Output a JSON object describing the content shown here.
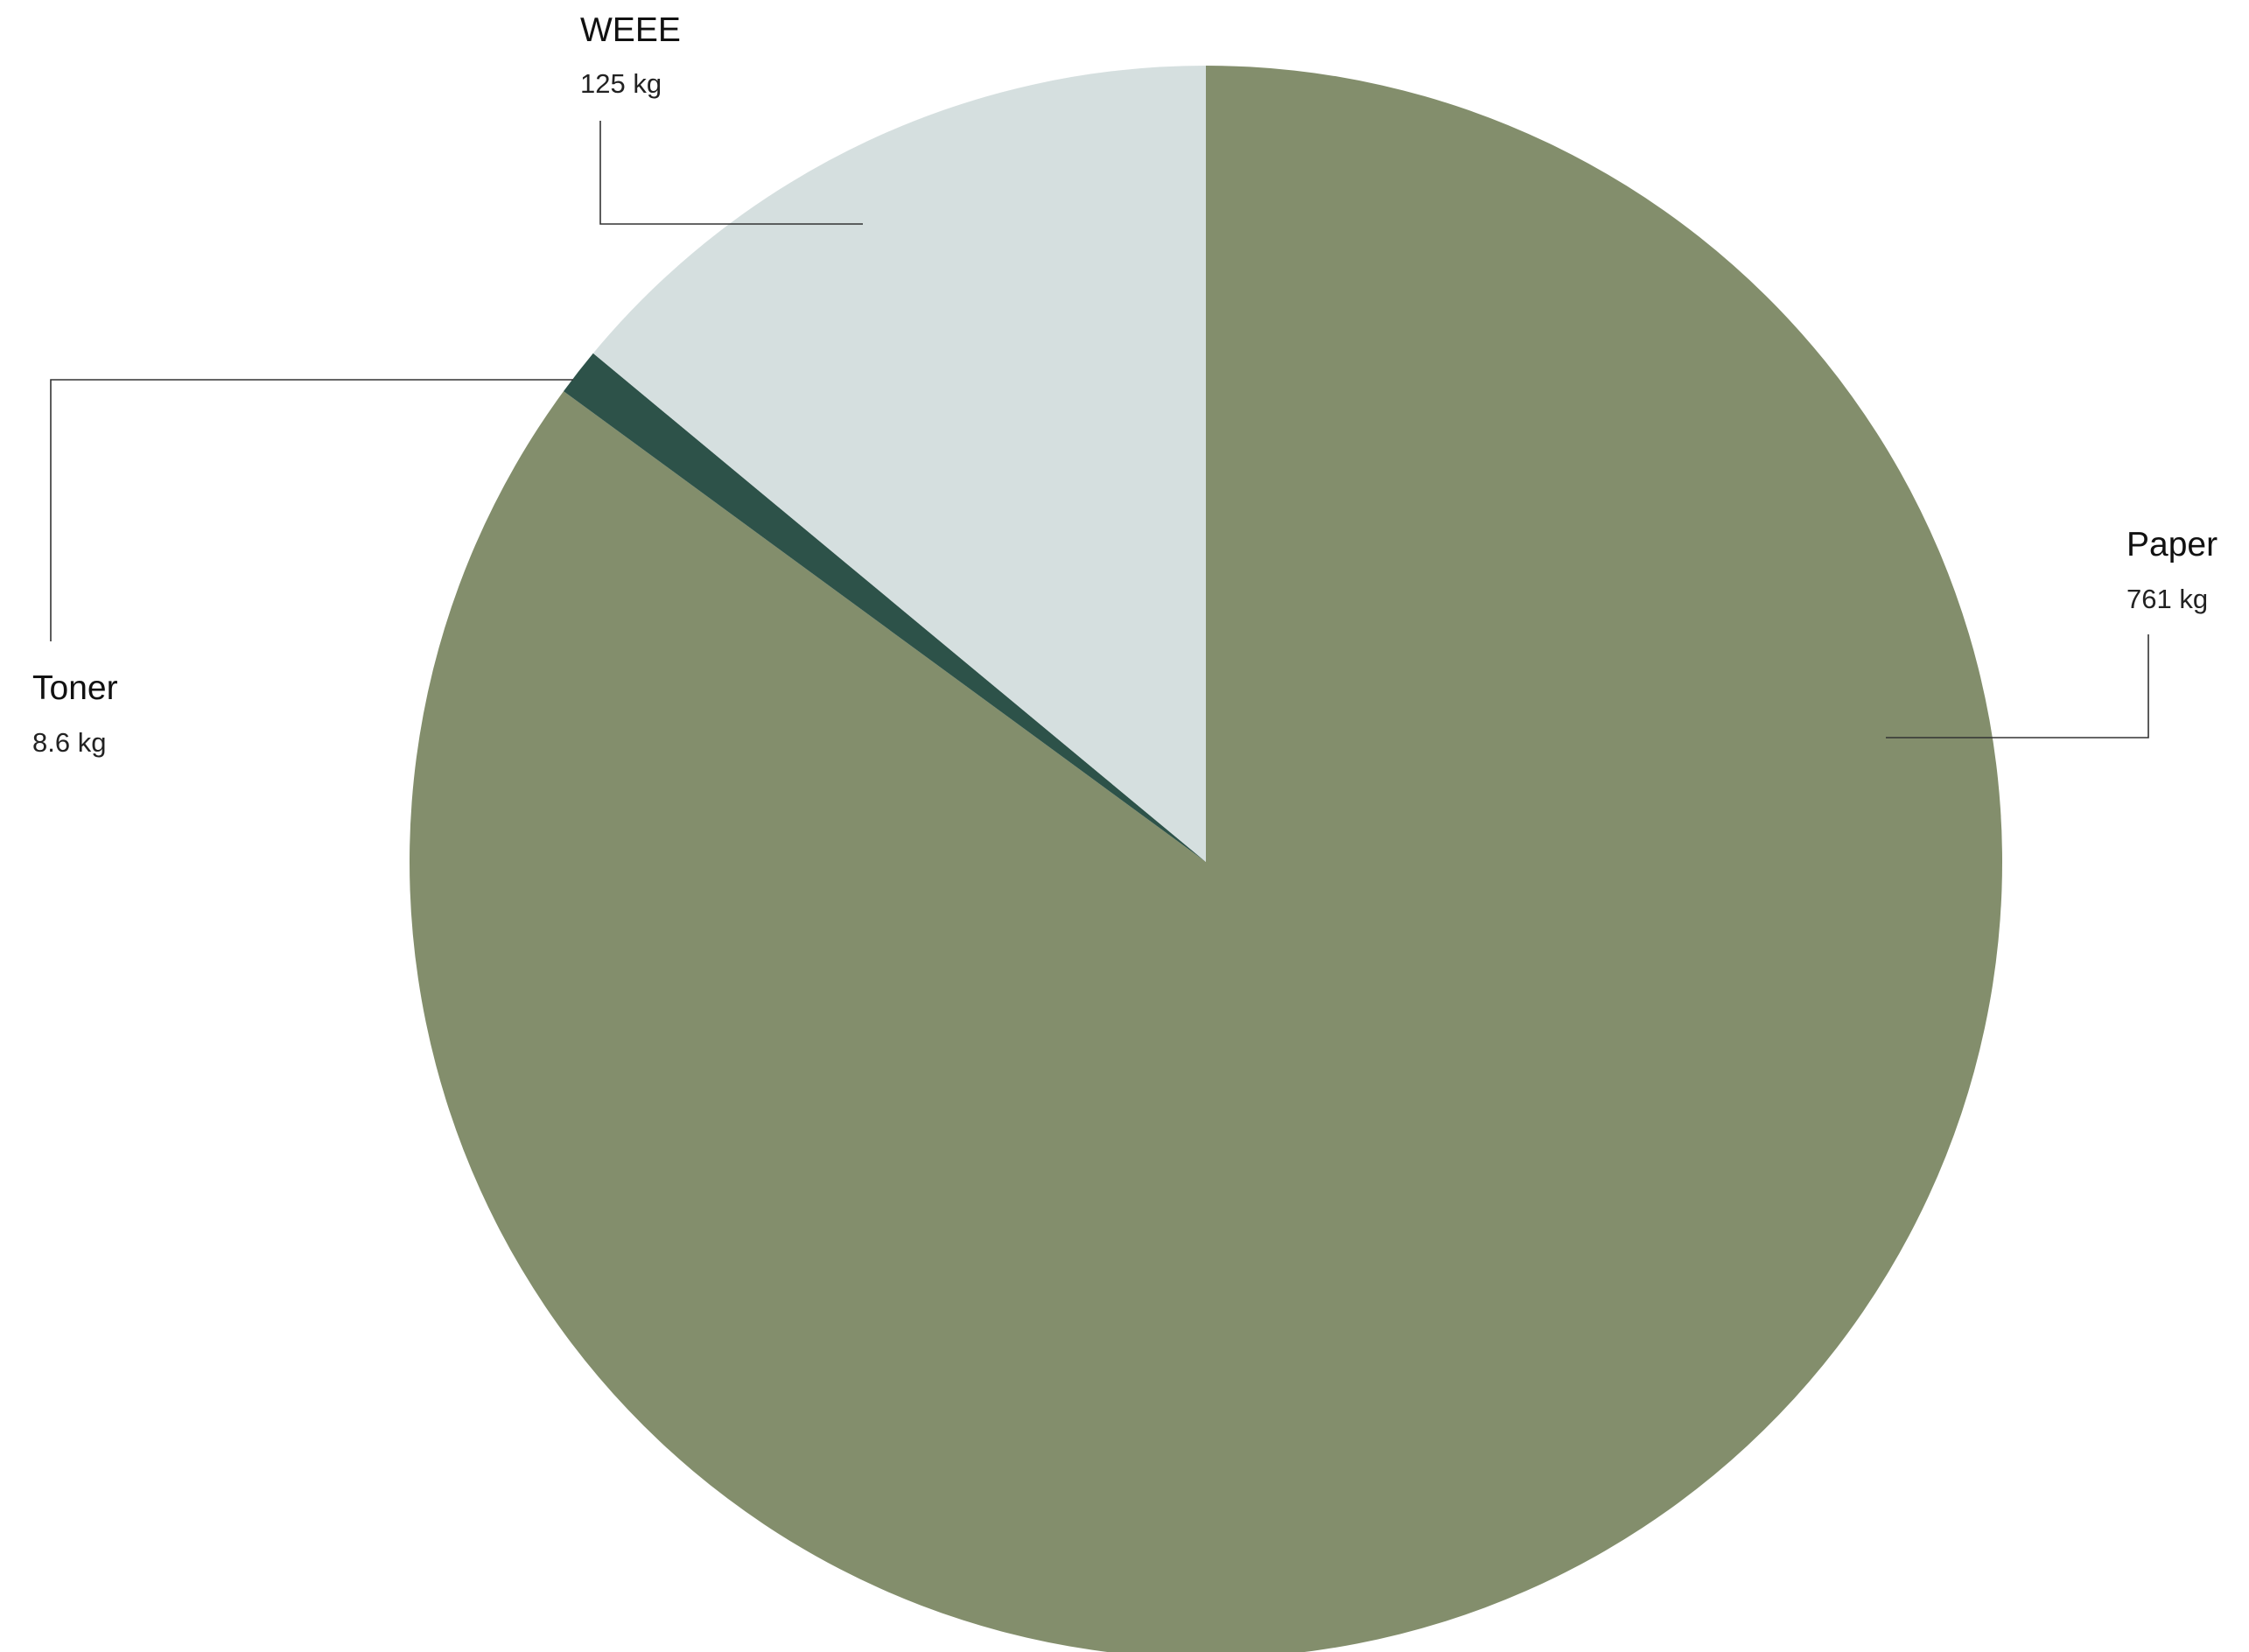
{
  "chart_data": {
    "type": "pie",
    "start_angle_deg": 0,
    "direction": "clockwise",
    "slices": [
      {
        "name": "Paper",
        "value": 761,
        "value_label": "761 kg",
        "color": "#838E6C"
      },
      {
        "name": "Toner",
        "value": 8.6,
        "value_label": "8.6 kg",
        "color": "#2D5249"
      },
      {
        "name": "WEEE",
        "value": 125,
        "value_label": "125 kg",
        "color": "#D5DFDF"
      }
    ],
    "unit": "kg",
    "legend": "none"
  },
  "colors": {
    "background": "#ffffff",
    "leader_line": "#333333"
  }
}
